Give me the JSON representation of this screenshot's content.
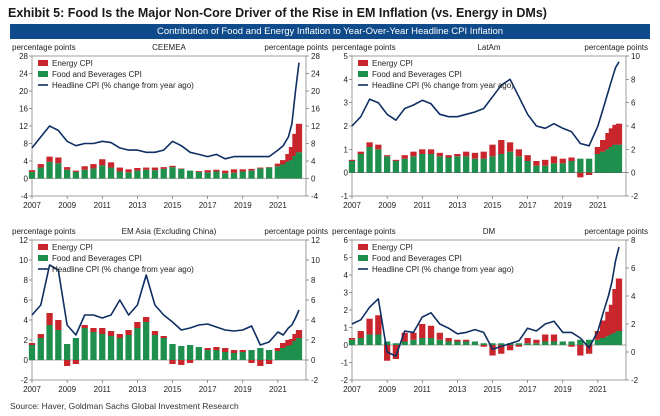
{
  "page": {
    "title": "Exhibit 5: Food Is the Major Non-Core Driver of the Rise in EM Inflation (vs. Energy in DMs)",
    "banner": "Contribution of Food and Energy Inflation to Year-Over-Year Headline CPI Inflation",
    "source": "Source: Haver, Goldman Sachs Global Investment Research"
  },
  "colors": {
    "energy": "#c8262c",
    "food": "#1f8f4e",
    "headline": "#0f2f63",
    "banner": "#0f4a8a"
  },
  "chart_data": [
    {
      "type": "line",
      "panel": "CEEMEA",
      "title": "CEEMEA",
      "left_axis_label": "percentage points",
      "right_axis_label": "percentage points",
      "left_ylim": [
        -4,
        28
      ],
      "left_ticks": [
        -4,
        0,
        4,
        8,
        12,
        16,
        20,
        24,
        28
      ],
      "right_ylim": [
        -4,
        28
      ],
      "right_ticks": [
        -4,
        0,
        4,
        8,
        12,
        16,
        20,
        24,
        28
      ],
      "xlim": [
        2007,
        2022.6
      ],
      "xticks": [
        "2007",
        "2009",
        "2011",
        "2013",
        "2015",
        "2017",
        "2019",
        "2021"
      ],
      "legend_position": "top-left",
      "legend": [
        "Energy CPI",
        "Food and Beverages CPI",
        "Headline CPI (% change from year ago)"
      ],
      "x": [
        2007.0,
        2007.5,
        2008.0,
        2008.5,
        2009.0,
        2009.5,
        2010.0,
        2010.5,
        2011.0,
        2011.5,
        2012.0,
        2012.5,
        2013.0,
        2013.5,
        2014.0,
        2014.5,
        2015.0,
        2015.5,
        2016.0,
        2016.5,
        2017.0,
        2017.5,
        2018.0,
        2018.5,
        2019.0,
        2019.5,
        2020.0,
        2020.5,
        2021.0,
        2021.3,
        2021.6,
        2021.8,
        2022.0,
        2022.2
      ],
      "series": [
        {
          "name": "Energy CPI",
          "kind": "bar",
          "axis": "left",
          "values": [
            0.4,
            0.8,
            1.2,
            1.3,
            0.6,
            0.3,
            0.8,
            1.0,
            1.4,
            1.2,
            0.9,
            0.7,
            0.6,
            0.5,
            0.6,
            0.4,
            0.3,
            0.1,
            0.0,
            0.2,
            0.5,
            0.4,
            0.6,
            0.8,
            0.5,
            0.4,
            0.2,
            0.1,
            0.6,
            1.0,
            1.8,
            3.0,
            5.0,
            6.5
          ]
        },
        {
          "name": "Food and Beverages CPI",
          "kind": "bar",
          "axis": "left",
          "values": [
            1.5,
            2.5,
            3.8,
            3.5,
            2.0,
            1.5,
            2.0,
            2.3,
            3.0,
            2.5,
            1.6,
            1.4,
            1.8,
            2.0,
            1.9,
            2.2,
            2.6,
            2.2,
            1.8,
            1.5,
            1.4,
            1.6,
            1.2,
            1.3,
            1.6,
            1.8,
            2.3,
            2.5,
            2.8,
            3.2,
            3.8,
            4.2,
            5.2,
            6.0
          ]
        },
        {
          "name": "Headline CPI (% change from year ago)",
          "kind": "line",
          "axis": "right",
          "values": [
            7.0,
            9.5,
            12.0,
            11.0,
            8.5,
            7.5,
            8.0,
            8.0,
            8.5,
            8.2,
            7.0,
            6.5,
            6.5,
            6.0,
            6.0,
            6.5,
            8.5,
            7.5,
            6.0,
            5.5,
            5.0,
            5.5,
            4.5,
            5.0,
            5.0,
            5.0,
            5.0,
            5.0,
            6.5,
            7.5,
            9.5,
            12.5,
            20.0,
            26.5
          ]
        }
      ]
    },
    {
      "type": "line",
      "panel": "LatAm",
      "title": "LatAm",
      "left_axis_label": "percentage points",
      "right_axis_label": "percentage points",
      "left_ylim": [
        -1,
        5
      ],
      "left_ticks": [
        -1,
        0,
        1,
        2,
        3,
        4,
        5
      ],
      "right_ylim": [
        -2,
        10
      ],
      "right_ticks": [
        -2,
        0,
        2,
        4,
        6,
        8,
        10
      ],
      "xlim": [
        2007,
        2022.6
      ],
      "xticks": [
        "2007",
        "2009",
        "2011",
        "2013",
        "2015",
        "2017",
        "2019",
        "2021"
      ],
      "legend_position": "top-left",
      "legend": [
        "Energy CPI",
        "Food and Beverages CPI",
        "Headline CPI (% change from year ago)"
      ],
      "x": [
        2007.0,
        2007.5,
        2008.0,
        2008.5,
        2009.0,
        2009.5,
        2010.0,
        2010.5,
        2011.0,
        2011.5,
        2012.0,
        2012.5,
        2013.0,
        2013.5,
        2014.0,
        2014.5,
        2015.0,
        2015.5,
        2016.0,
        2016.5,
        2017.0,
        2017.5,
        2018.0,
        2018.5,
        2019.0,
        2019.5,
        2020.0,
        2020.5,
        2021.0,
        2021.3,
        2021.6,
        2021.8,
        2022.0,
        2022.2
      ],
      "series": [
        {
          "name": "Energy CPI",
          "kind": "bar",
          "axis": "left",
          "values": [
            0.05,
            0.1,
            0.2,
            0.2,
            0.05,
            0.05,
            0.15,
            0.2,
            0.2,
            0.2,
            0.15,
            0.1,
            0.1,
            0.2,
            0.25,
            0.3,
            0.5,
            0.6,
            0.4,
            0.3,
            0.25,
            0.2,
            0.25,
            0.3,
            0.2,
            0.15,
            -0.2,
            -0.1,
            0.3,
            0.5,
            0.7,
            0.8,
            0.85,
            0.9
          ]
        },
        {
          "name": "Food and Beverages CPI",
          "kind": "bar",
          "axis": "left",
          "values": [
            0.5,
            0.8,
            1.1,
            1.0,
            0.7,
            0.5,
            0.6,
            0.7,
            0.8,
            0.8,
            0.7,
            0.65,
            0.7,
            0.7,
            0.6,
            0.6,
            0.7,
            0.8,
            0.9,
            0.7,
            0.5,
            0.3,
            0.3,
            0.4,
            0.4,
            0.5,
            0.6,
            0.6,
            0.8,
            0.9,
            1.0,
            1.1,
            1.2,
            1.2
          ]
        },
        {
          "name": "Headline CPI (% change from year ago)",
          "kind": "line",
          "axis": "right",
          "values": [
            4.0,
            4.8,
            6.3,
            6.0,
            5.0,
            4.5,
            5.5,
            5.8,
            6.2,
            5.9,
            5.0,
            4.8,
            4.8,
            5.0,
            5.2,
            5.5,
            6.5,
            7.5,
            8.0,
            6.5,
            5.0,
            4.0,
            3.8,
            4.2,
            3.8,
            3.5,
            2.5,
            2.3,
            4.0,
            5.5,
            7.0,
            8.0,
            9.0,
            9.5
          ]
        }
      ]
    },
    {
      "type": "line",
      "panel": "EM Asia",
      "title": "EM Asia (Excluding China)",
      "left_axis_label": "percentage points",
      "right_axis_label": "percentage points",
      "left_ylim": [
        -2,
        12
      ],
      "left_ticks": [
        -2,
        0,
        2,
        4,
        6,
        8,
        10,
        12
      ],
      "right_ylim": [
        -2,
        12
      ],
      "right_ticks": [
        -2,
        0,
        2,
        4,
        6,
        8,
        10,
        12
      ],
      "xlim": [
        2007,
        2022.6
      ],
      "xticks": [
        "2007",
        "2009",
        "2011",
        "2013",
        "2015",
        "2017",
        "2019",
        "2021"
      ],
      "legend_position": "top-left",
      "legend": [
        "Energy CPI",
        "Food and Beverages CPI",
        "Headline CPI (% change from year ago)"
      ],
      "x": [
        2007.0,
        2007.5,
        2008.0,
        2008.5,
        2009.0,
        2009.5,
        2010.0,
        2010.5,
        2011.0,
        2011.5,
        2012.0,
        2012.5,
        2013.0,
        2013.5,
        2014.0,
        2014.5,
        2015.0,
        2015.5,
        2016.0,
        2016.5,
        2017.0,
        2017.5,
        2018.0,
        2018.5,
        2019.0,
        2019.5,
        2020.0,
        2020.5,
        2021.0,
        2021.3,
        2021.6,
        2021.8,
        2022.0,
        2022.2
      ],
      "series": [
        {
          "name": "Energy CPI",
          "kind": "bar",
          "axis": "left",
          "values": [
            0.2,
            0.4,
            1.2,
            1.0,
            -0.6,
            -0.4,
            0.3,
            0.4,
            0.6,
            0.5,
            0.4,
            0.5,
            0.6,
            0.5,
            0.4,
            0.2,
            -0.4,
            -0.5,
            -0.3,
            0.0,
            0.2,
            0.3,
            0.4,
            0.3,
            0.2,
            -0.3,
            -0.6,
            -0.4,
            0.3,
            0.5,
            0.6,
            0.6,
            0.7,
            0.8
          ]
        },
        {
          "name": "Food and Beverages CPI",
          "kind": "bar",
          "axis": "left",
          "values": [
            1.5,
            2.2,
            3.5,
            3.0,
            1.6,
            2.2,
            3.2,
            2.8,
            2.6,
            2.4,
            2.2,
            2.5,
            3.2,
            3.8,
            2.5,
            2.2,
            1.6,
            1.4,
            1.5,
            1.3,
            1.0,
            1.0,
            0.8,
            0.7,
            0.8,
            1.0,
            1.2,
            1.0,
            0.9,
            1.2,
            1.4,
            1.5,
            1.9,
            2.2
          ]
        },
        {
          "name": "Headline CPI (% change from year ago)",
          "kind": "line",
          "axis": "right",
          "values": [
            4.5,
            5.5,
            9.5,
            9.0,
            3.5,
            2.5,
            4.5,
            4.5,
            4.2,
            4.5,
            6.0,
            4.5,
            5.5,
            8.5,
            5.5,
            4.5,
            3.8,
            3.0,
            3.2,
            3.5,
            3.6,
            3.3,
            3.0,
            2.9,
            3.0,
            3.4,
            1.5,
            1.8,
            2.8,
            2.5,
            3.2,
            3.5,
            4.2,
            5.0
          ]
        }
      ]
    },
    {
      "type": "line",
      "panel": "DM",
      "title": "DM",
      "left_axis_label": "percentage points",
      "right_axis_label": "percentage points",
      "left_ylim": [
        -2,
        6
      ],
      "left_ticks": [
        -2,
        -1,
        0,
        1,
        2,
        3,
        4,
        5,
        6
      ],
      "right_ylim": [
        -2,
        8
      ],
      "right_ticks": [
        -2,
        0,
        2,
        4,
        6,
        8
      ],
      "xlim": [
        2007,
        2022.6
      ],
      "xticks": [
        "2007",
        "2009",
        "2011",
        "2013",
        "2015",
        "2017",
        "2019",
        "2021"
      ],
      "legend_position": "top-left",
      "legend": [
        "Energy CPI",
        "Food and Beverages CPI",
        "Headline CPI (% change from year ago)"
      ],
      "x": [
        2007.0,
        2007.5,
        2008.0,
        2008.5,
        2009.0,
        2009.5,
        2010.0,
        2010.5,
        2011.0,
        2011.5,
        2012.0,
        2012.5,
        2013.0,
        2013.5,
        2014.0,
        2014.5,
        2015.0,
        2015.5,
        2016.0,
        2016.5,
        2017.0,
        2017.5,
        2018.0,
        2018.5,
        2019.0,
        2019.5,
        2020.0,
        2020.5,
        2021.0,
        2021.3,
        2021.6,
        2021.8,
        2022.0,
        2022.2
      ],
      "series": [
        {
          "name": "Energy CPI",
          "kind": "bar",
          "axis": "left",
          "values": [
            0.1,
            0.4,
            0.9,
            1.1,
            -0.9,
            -0.8,
            0.5,
            0.4,
            0.8,
            0.7,
            0.4,
            0.2,
            0.1,
            0.1,
            0.0,
            -0.1,
            -0.6,
            -0.5,
            -0.3,
            -0.1,
            0.3,
            0.2,
            0.4,
            0.4,
            0.0,
            -0.1,
            -0.6,
            -0.5,
            0.5,
            1.0,
            1.4,
            1.7,
            2.5,
            3.0
          ]
        },
        {
          "name": "Food and Beverages CPI",
          "kind": "bar",
          "axis": "left",
          "values": [
            0.3,
            0.4,
            0.6,
            0.6,
            0.2,
            0.1,
            0.2,
            0.3,
            0.4,
            0.4,
            0.3,
            0.2,
            0.2,
            0.2,
            0.2,
            0.1,
            0.1,
            0.1,
            0.1,
            0.1,
            0.1,
            0.1,
            0.2,
            0.2,
            0.2,
            0.2,
            0.3,
            0.3,
            0.3,
            0.4,
            0.5,
            0.6,
            0.7,
            0.8
          ]
        },
        {
          "name": "Headline CPI (% change from year ago)",
          "kind": "line",
          "axis": "right",
          "values": [
            2.0,
            2.3,
            3.2,
            3.8,
            0.0,
            -0.3,
            1.5,
            1.4,
            2.5,
            2.8,
            2.0,
            1.7,
            1.3,
            1.4,
            1.6,
            1.4,
            0.2,
            0.4,
            0.6,
            0.8,
            1.7,
            1.5,
            2.0,
            2.2,
            1.4,
            1.4,
            1.0,
            0.3,
            1.5,
            2.8,
            4.0,
            5.0,
            6.5,
            7.5
          ]
        }
      ]
    }
  ]
}
